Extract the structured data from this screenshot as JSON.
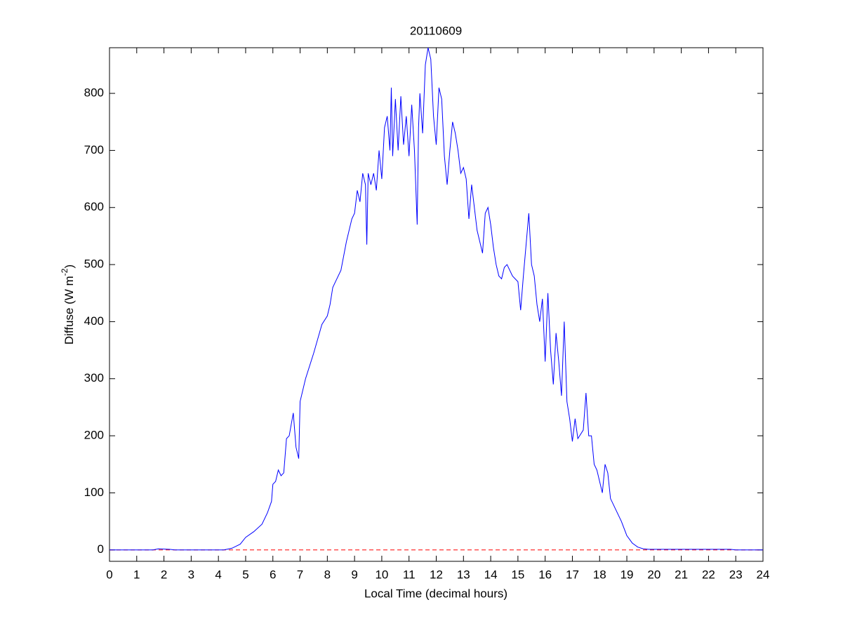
{
  "chart_data": {
    "type": "line",
    "title": "20110609",
    "xlabel": "Local Time (decimal hours)",
    "ylabel": [
      "Diffuse (W m",
      "-2",
      ")"
    ],
    "xlim": [
      0,
      24
    ],
    "xticks": [
      0,
      1,
      2,
      3,
      4,
      5,
      6,
      7,
      8,
      9,
      10,
      11,
      12,
      13,
      14,
      15,
      16,
      17,
      18,
      19,
      20,
      21,
      22,
      23,
      24
    ],
    "ylim": [
      -20,
      880
    ],
    "yticks": [
      0,
      100,
      200,
      300,
      400,
      500,
      600,
      700,
      800
    ],
    "grid": false,
    "reference_line": {
      "value": 0,
      "color": "#ff0000",
      "style": "dashed"
    },
    "x": [
      0,
      1.6,
      1.8,
      2.2,
      2.4,
      4.2,
      4.5,
      4.8,
      5.0,
      5.3,
      5.6,
      5.8,
      5.95,
      6.0,
      6.1,
      6.2,
      6.3,
      6.4,
      6.5,
      6.6,
      6.75,
      6.85,
      6.95,
      7.0,
      7.2,
      7.5,
      7.8,
      8.0,
      8.1,
      8.2,
      8.3,
      8.5,
      8.7,
      8.9,
      9.0,
      9.1,
      9.2,
      9.3,
      9.4,
      9.45,
      9.5,
      9.6,
      9.7,
      9.8,
      9.9,
      10.0,
      10.1,
      10.2,
      10.3,
      10.35,
      10.4,
      10.5,
      10.6,
      10.7,
      10.8,
      10.9,
      11.0,
      11.1,
      11.2,
      11.3,
      11.35,
      11.4,
      11.5,
      11.6,
      11.7,
      11.8,
      11.9,
      12.0,
      12.1,
      12.2,
      12.3,
      12.4,
      12.5,
      12.6,
      12.7,
      12.8,
      12.9,
      13.0,
      13.1,
      13.2,
      13.3,
      13.4,
      13.5,
      13.6,
      13.7,
      13.8,
      13.9,
      14.0,
      14.1,
      14.2,
      14.3,
      14.4,
      14.5,
      14.6,
      14.8,
      15.0,
      15.1,
      15.2,
      15.4,
      15.5,
      15.6,
      15.7,
      15.8,
      15.9,
      16.0,
      16.1,
      16.2,
      16.3,
      16.4,
      16.5,
      16.6,
      16.7,
      16.8,
      16.9,
      17.0,
      17.1,
      17.2,
      17.4,
      17.5,
      17.6,
      17.7,
      17.8,
      17.9,
      18.0,
      18.1,
      18.2,
      18.3,
      18.4,
      18.6,
      18.8,
      19.0,
      19.2,
      19.4,
      19.6,
      19.8,
      20.0,
      22.8,
      23.0,
      24
    ],
    "series": [
      {
        "color": "#0000ff",
        "values": [
          0,
          0,
          2,
          1,
          0,
          0,
          3,
          10,
          22,
          32,
          45,
          65,
          85,
          115,
          120,
          140,
          130,
          135,
          195,
          200,
          240,
          180,
          160,
          260,
          300,
          345,
          395,
          410,
          430,
          460,
          470,
          490,
          540,
          580,
          590,
          630,
          610,
          660,
          640,
          535,
          660,
          640,
          660,
          630,
          700,
          650,
          740,
          760,
          700,
          810,
          690,
          790,
          700,
          795,
          710,
          760,
          690,
          780,
          700,
          570,
          740,
          800,
          730,
          850,
          880,
          860,
          760,
          710,
          810,
          790,
          690,
          640,
          700,
          750,
          730,
          700,
          660,
          670,
          650,
          580,
          640,
          600,
          560,
          540,
          520,
          590,
          600,
          570,
          530,
          500,
          480,
          475,
          495,
          500,
          480,
          470,
          420,
          480,
          590,
          500,
          480,
          430,
          400,
          440,
          330,
          450,
          350,
          290,
          380,
          330,
          270,
          400,
          260,
          230,
          190,
          230,
          195,
          210,
          275,
          200,
          200,
          150,
          140,
          120,
          100,
          150,
          135,
          90,
          70,
          50,
          25,
          12,
          5,
          2,
          1,
          1,
          1,
          0,
          0
        ]
      }
    ]
  }
}
